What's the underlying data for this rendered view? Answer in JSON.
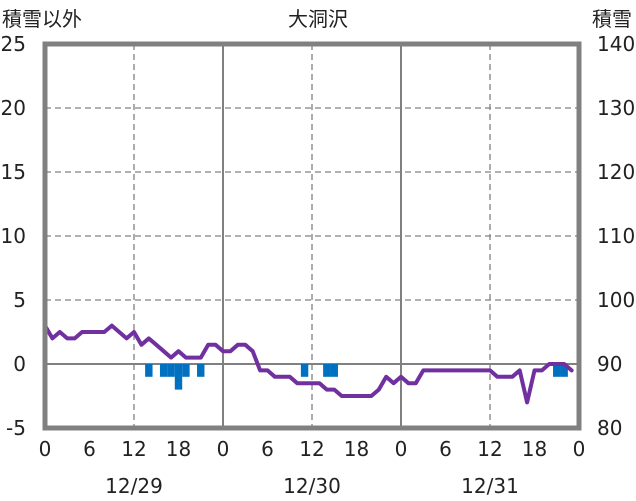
{
  "chart_data": {
    "type": "line",
    "title": "大洞沢",
    "left_axis_label": "積雪以外",
    "right_axis_label": "積雪",
    "ylim_left": [
      -5,
      25
    ],
    "yticks_left": [
      -5,
      0,
      5,
      10,
      15,
      20,
      25
    ],
    "ylim_right": [
      80,
      140
    ],
    "yticks_right": [
      80,
      90,
      100,
      110,
      120,
      130,
      140
    ],
    "xlim_hours": [
      0,
      72
    ],
    "xticks": [
      {
        "h": 0,
        "label": "0"
      },
      {
        "h": 6,
        "label": "6"
      },
      {
        "h": 12,
        "label": "12"
      },
      {
        "h": 18,
        "label": "18"
      },
      {
        "h": 24,
        "label": "0"
      },
      {
        "h": 30,
        "label": "6"
      },
      {
        "h": 36,
        "label": "12"
      },
      {
        "h": 42,
        "label": "18"
      },
      {
        "h": 48,
        "label": "0"
      },
      {
        "h": 54,
        "label": "6"
      },
      {
        "h": 60,
        "label": "12"
      },
      {
        "h": 66,
        "label": "18"
      },
      {
        "h": 72,
        "label": "0"
      }
    ],
    "dates": [
      {
        "h": 12,
        "label": "12/29"
      },
      {
        "h": 36,
        "label": "12/30"
      },
      {
        "h": 60,
        "label": "12/31"
      }
    ],
    "grid": true,
    "series": [
      {
        "type": "line",
        "axis": "left",
        "color": "#7030a0",
        "x": [
          0,
          1,
          2,
          3,
          4,
          5,
          6,
          7,
          8,
          9,
          10,
          11,
          12,
          13,
          14,
          15,
          16,
          17,
          18,
          19,
          20,
          21,
          22,
          23,
          24,
          25,
          26,
          27,
          28,
          29,
          30,
          31,
          32,
          33,
          34,
          35,
          36,
          37,
          38,
          39,
          40,
          41,
          42,
          43,
          44,
          45,
          46,
          47,
          48,
          49,
          50,
          51,
          52,
          53,
          54,
          55,
          56,
          57,
          58,
          59,
          60,
          61,
          62,
          63,
          64,
          65,
          66,
          67,
          68,
          69,
          70,
          71
        ],
        "y": [
          3.0,
          2.0,
          2.5,
          2.0,
          2.0,
          2.5,
          2.5,
          2.5,
          2.5,
          3.0,
          2.5,
          2.0,
          2.5,
          1.5,
          2.0,
          1.5,
          1.0,
          0.5,
          1.0,
          0.5,
          0.5,
          0.5,
          1.5,
          1.5,
          1.0,
          1.0,
          1.5,
          1.5,
          1.0,
          -0.5,
          -0.5,
          -1.0,
          -1.0,
          -1.0,
          -1.5,
          -1.5,
          -1.5,
          -1.5,
          -2.0,
          -2.0,
          -2.5,
          -2.5,
          -2.5,
          -2.5,
          -2.5,
          -2.0,
          -1.0,
          -1.5,
          -1.0,
          -1.5,
          -1.5,
          -0.5,
          -0.5,
          -0.5,
          -0.5,
          -0.5,
          -0.5,
          -0.5,
          -0.5,
          -0.5,
          -0.5,
          -1.0,
          -1.0,
          -1.0,
          -0.5,
          -3.0,
          -0.5,
          -0.5,
          0.0,
          0.0,
          0.0,
          -0.5
        ]
      },
      {
        "type": "bar",
        "axis": "left",
        "color": "#0070c0",
        "x": [
          14,
          16,
          17,
          18,
          19,
          21,
          35,
          38,
          39,
          69,
          70
        ],
        "y": [
          -1.0,
          -1.0,
          -1.0,
          -2.0,
          -1.0,
          -1.0,
          -1.0,
          -1.0,
          -1.0,
          -1.0,
          -1.0
        ]
      }
    ]
  }
}
